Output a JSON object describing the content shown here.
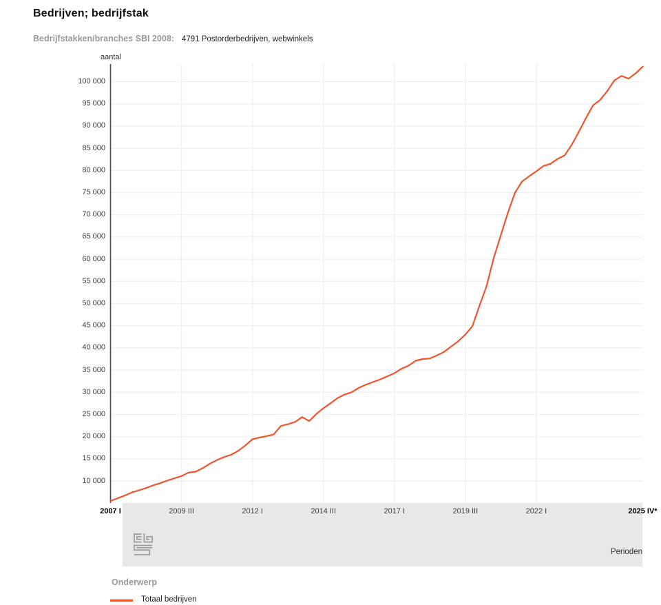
{
  "page": {
    "title": "Bedrijven; bedrijfstak"
  },
  "filter": {
    "label": "Bedrijfstakken/branches SBI 2008:",
    "value": "4791 Postorderbedrijven, webwinkels"
  },
  "chart_data": {
    "type": "line",
    "title": "Bedrijven; bedrijfstak",
    "ylabel": "aantal",
    "xlabel": "Perioden",
    "grid": true,
    "legend_position": "bottom",
    "ylim": [
      4870,
      103950
    ],
    "x_total_quarters": 76,
    "y_ticks": [
      {
        "value": 10000,
        "label": "10 000"
      },
      {
        "value": 15000,
        "label": "15 000"
      },
      {
        "value": 20000,
        "label": "20 000"
      },
      {
        "value": 25000,
        "label": "25 000"
      },
      {
        "value": 30000,
        "label": "30 000"
      },
      {
        "value": 35000,
        "label": "35 000"
      },
      {
        "value": 40000,
        "label": "40 000"
      },
      {
        "value": 45000,
        "label": "45 000"
      },
      {
        "value": 50000,
        "label": "50 000"
      },
      {
        "value": 55000,
        "label": "55 000"
      },
      {
        "value": 60000,
        "label": "60 000"
      },
      {
        "value": 65000,
        "label": "65 000"
      },
      {
        "value": 70000,
        "label": "70 000"
      },
      {
        "value": 75000,
        "label": "75 000"
      },
      {
        "value": 80000,
        "label": "80 000"
      },
      {
        "value": 85000,
        "label": "85 000"
      },
      {
        "value": 90000,
        "label": "90 000"
      },
      {
        "value": 95000,
        "label": "95 000"
      },
      {
        "value": 100000,
        "label": "100 000"
      }
    ],
    "x_ticks": [
      {
        "index": 0,
        "label": "2007 I",
        "bold": true
      },
      {
        "index": 10,
        "label": "2009 III",
        "bold": false
      },
      {
        "index": 20,
        "label": "2012 I",
        "bold": false
      },
      {
        "index": 30,
        "label": "2014 III",
        "bold": false
      },
      {
        "index": 40,
        "label": "2017 I",
        "bold": false
      },
      {
        "index": 50,
        "label": "2019 III",
        "bold": false
      },
      {
        "index": 60,
        "label": "2022 I",
        "bold": false
      },
      {
        "index": 75,
        "label": "2025 IV*",
        "bold": true
      }
    ],
    "series": [
      {
        "name": "Totaal bedrijven",
        "color": "#f0542c",
        "start_period_label": "2007 I",
        "end_period_label": "2025 IV*",
        "values": [
          5500,
          6100,
          6700,
          7400,
          7900,
          8400,
          9000,
          9500,
          10100,
          10600,
          11100,
          11900,
          12100,
          12900,
          13900,
          14700,
          15400,
          15900,
          16800,
          18000,
          19400,
          19800,
          20100,
          20500,
          22400,
          22800,
          23300,
          24400,
          23500,
          25100,
          26400,
          27500,
          28700,
          29500,
          30000,
          31000,
          31700,
          32300,
          32900,
          33600,
          34300,
          35300,
          36000,
          37100,
          37500,
          37600,
          38300,
          39100,
          40300,
          41500,
          43000,
          44900,
          49500,
          54000,
          60300,
          65400,
          70500,
          75000,
          77500,
          78700,
          79800,
          81000,
          81500,
          82600,
          83400,
          85800,
          88700,
          91800,
          94700,
          95900,
          97900,
          100300,
          101300,
          100700,
          101900,
          103400
        ]
      }
    ]
  },
  "legend": {
    "title": "Onderwerp",
    "items": [
      {
        "label": "Totaal bedrijven",
        "color": "#f0542c"
      }
    ]
  },
  "footer": {
    "periods_label": "Perioden"
  },
  "colors": {
    "line": "#f0542c",
    "grid": "#f0f0f0",
    "axis": "#4a4a4a",
    "band": "#e8e8e8",
    "muted_text": "#999999",
    "text": "#333333",
    "logo": "#9b9b9b"
  }
}
